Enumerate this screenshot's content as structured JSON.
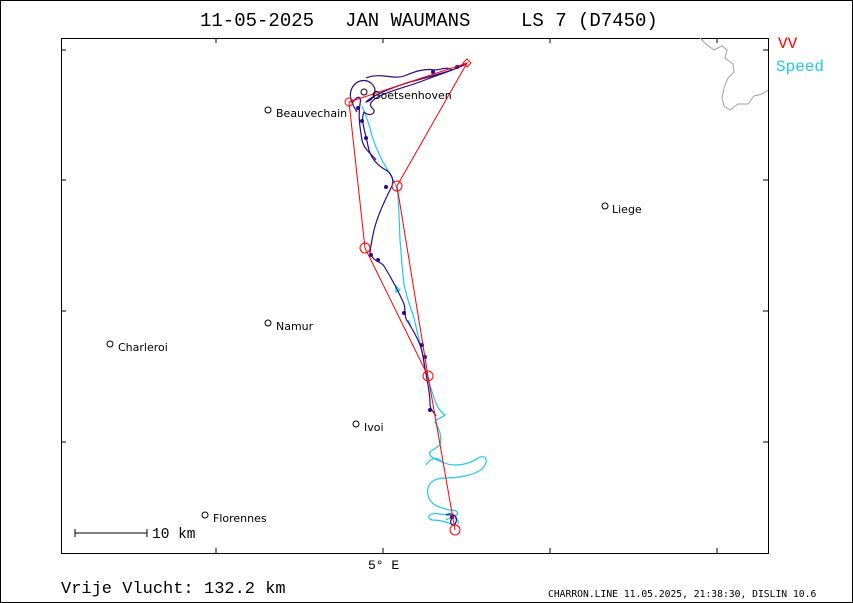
{
  "title": {
    "date": "11-05-2025",
    "pilot": "JAN WAUMANS",
    "glider": "LS 7 (D7450)"
  },
  "legend": [
    {
      "label": "VV",
      "color": "#ff0000"
    },
    {
      "label": "Speed",
      "color": "#1ec8f0"
    }
  ],
  "axis": {
    "x_tick_label": "5° E"
  },
  "places": [
    {
      "name": "Goetsenhoven"
    },
    {
      "name": "Beauvechain"
    },
    {
      "name": "Liege"
    },
    {
      "name": "Namur"
    },
    {
      "name": "Charleroi"
    },
    {
      "name": "Ivoi"
    },
    {
      "name": "Florennes"
    }
  ],
  "scale_bar": {
    "label": "10 km"
  },
  "footer": {
    "distance_label": "Vrije Vlucht:",
    "distance_value": "132.2 km",
    "credit": "CHARRON.LINE 11.05.2025, 21:38:30, DISLIN 10.6"
  },
  "colors": {
    "task": "#ff0000",
    "track": "#2a0a8c",
    "speed_track": "#1ec8f0",
    "country_border": "#a0a0a0",
    "frame": "#000000"
  }
}
